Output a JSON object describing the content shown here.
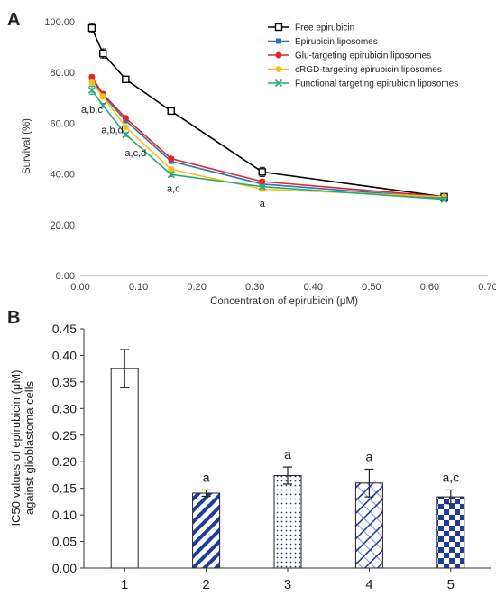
{
  "chart_data": [
    {
      "panel": "A",
      "type": "line",
      "xlabel": "Concentration of epirubicin (μM)",
      "ylabel": "Survival (%)",
      "xlim": [
        0,
        0.7
      ],
      "ylim": [
        0,
        100
      ],
      "x_ticks": [
        "0.00",
        "0.10",
        "0.20",
        "0.30",
        "0.40",
        "0.50",
        "0.60",
        "0.70"
      ],
      "y_ticks": [
        "0.00",
        "20.00",
        "40.00",
        "60.00",
        "80.00",
        "100.00"
      ],
      "legend_position": "top-right",
      "x": [
        0.02,
        0.039,
        0.078,
        0.156,
        0.3125,
        0.625
      ],
      "series": [
        {
          "name": "Free epirubicin",
          "color": "#000000",
          "marker": "open-square",
          "values": [
            97.5,
            87.5,
            77.3,
            64.8,
            40.8,
            31.0
          ],
          "errors": [
            1.8,
            1.8,
            1.0,
            1.0,
            1.8,
            1.0
          ]
        },
        {
          "name": "Epirubicin liposomes",
          "color": "#2e75b6",
          "marker": "square",
          "values": [
            77.5,
            71.0,
            61.0,
            45.0,
            36.0,
            30.5
          ],
          "errors": [
            0.8,
            0.8,
            0.8,
            0.8,
            0.8,
            0.8
          ]
        },
        {
          "name": "Glu-targeting epirubicin liposomes",
          "color": "#e3242b",
          "marker": "circle",
          "values": [
            78.2,
            71.5,
            62.0,
            46.0,
            37.0,
            31.0
          ],
          "errors": [
            0.8,
            0.8,
            0.8,
            0.8,
            0.8,
            0.8
          ]
        },
        {
          "name": "cRGD-targeting epirubicin liposomes",
          "color": "#f2c01e",
          "marker": "circle",
          "values": [
            76.0,
            70.5,
            58.5,
            41.8,
            34.0,
            31.0
          ],
          "errors": [
            0.8,
            0.8,
            0.8,
            0.8,
            0.8,
            0.8
          ]
        },
        {
          "name": "Functional targeting epirubicin liposomes",
          "color": "#2aa876",
          "marker": "x",
          "values": [
            73.0,
            67.0,
            55.5,
            39.8,
            35.0,
            30.0
          ],
          "errors": [
            1.6,
            0.8,
            0.8,
            0.8,
            0.8,
            0.8
          ]
        }
      ],
      "annotations": [
        {
          "text": "a,b,c",
          "x": 0.02,
          "y": 64
        },
        {
          "text": "a,b,d",
          "x": 0.055,
          "y": 56
        },
        {
          "text": "a,c,d",
          "x": 0.095,
          "y": 47
        },
        {
          "text": "a,c",
          "x": 0.16,
          "y": 33
        },
        {
          "text": "a",
          "x": 0.3125,
          "y": 27
        }
      ]
    },
    {
      "panel": "B",
      "type": "bar",
      "ylabel_line1": "IC50 values of epirubicin (μM)",
      "ylabel_line2": "against glioblastoma cells",
      "ylim": [
        0,
        0.45
      ],
      "y_ticks": [
        "0.00",
        "0.05",
        "0.10",
        "0.15",
        "0.20",
        "0.25",
        "0.30",
        "0.35",
        "0.40",
        "0.45"
      ],
      "categories": [
        "1",
        "2",
        "3",
        "4",
        "5"
      ],
      "values": [
        0.375,
        0.141,
        0.174,
        0.16,
        0.134
      ],
      "errors": [
        0.036,
        0.006,
        0.016,
        0.026,
        0.013
      ],
      "patterns": [
        "none",
        "diagonal-stripes",
        "dots",
        "diagonal-lattice",
        "checkerboard"
      ],
      "pattern_color": "#1f3c9a",
      "bar_labels": [
        "",
        "a",
        "a",
        "a",
        "a,c"
      ]
    }
  ],
  "panel_labels": [
    "A",
    "B"
  ]
}
